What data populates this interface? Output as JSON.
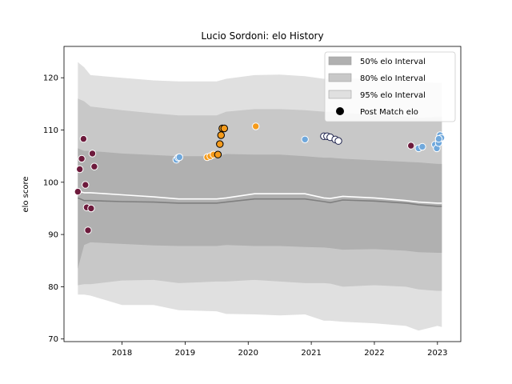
{
  "chart_data": {
    "type": "area",
    "title": "Lucio Sordoni: elo History",
    "xlabel": "",
    "ylabel": "elo score",
    "xlim": [
      2017.08,
      2023.37
    ],
    "ylim": [
      69.5,
      126.0
    ],
    "x_ticks": [
      2018,
      2019,
      2020,
      2021,
      2022,
      2023
    ],
    "x_tick_labels": [
      "2018",
      "2019",
      "2020",
      "2021",
      "2022",
      "2023"
    ],
    "y_ticks": [
      70,
      80,
      90,
      100,
      110,
      120
    ],
    "y_tick_labels": [
      "70",
      "80",
      "90",
      "100",
      "110",
      "120"
    ],
    "grid": false,
    "legend_position": "top-right",
    "legend": [
      {
        "label": "50% elo Interval",
        "kind": "patch",
        "color": "#b0b0b0"
      },
      {
        "label": "80% elo Interval",
        "kind": "patch",
        "color": "#c8c8c8"
      },
      {
        "label": "95% elo Interval",
        "kind": "patch",
        "color": "#e0e0e0"
      },
      {
        "label": "Post Match elo",
        "kind": "marker",
        "color": "#000000"
      }
    ],
    "band_x": [
      2017.3,
      2017.4,
      2017.5,
      2018.0,
      2018.5,
      2018.9,
      2019.5,
      2019.65,
      2020.1,
      2020.5,
      2020.9,
      2021.2,
      2021.3,
      2021.5,
      2022.0,
      2022.5,
      2022.7,
      2023.0,
      2023.07
    ],
    "mean": [
      97.0,
      96.5,
      96.5,
      96.3,
      96.2,
      96.0,
      96.0,
      96.2,
      96.8,
      96.8,
      96.8,
      96.3,
      96.1,
      96.6,
      96.4,
      96.0,
      95.7,
      95.4,
      95.4
    ],
    "median": [
      98.3,
      98.0,
      98.0,
      97.6,
      97.2,
      96.8,
      96.8,
      97.0,
      97.8,
      97.8,
      97.8,
      97.0,
      96.9,
      97.3,
      97.0,
      96.5,
      96.2,
      96.0,
      96.0
    ],
    "bands": [
      {
        "name": "95% elo Interval",
        "color": "#e0e0e0",
        "upper": [
          123.0,
          122.0,
          120.5,
          120.0,
          119.5,
          119.3,
          119.3,
          119.8,
          120.5,
          120.6,
          120.3,
          119.8,
          119.8,
          120.0,
          119.6,
          119.5,
          119.2,
          119.0,
          119.0
        ],
        "lower": [
          78.5,
          78.5,
          78.3,
          76.5,
          76.5,
          75.5,
          75.3,
          74.8,
          74.7,
          74.5,
          74.7,
          73.5,
          73.5,
          73.3,
          73.0,
          72.5,
          71.6,
          72.5,
          72.3
        ]
      },
      {
        "name": "80% elo Interval",
        "color": "#c8c8c8",
        "upper": [
          116.0,
          115.5,
          114.5,
          113.8,
          113.2,
          112.8,
          112.8,
          113.5,
          114.0,
          114.0,
          113.8,
          113.5,
          113.5,
          113.2,
          113.0,
          112.5,
          112.3,
          112.5,
          112.5
        ],
        "lower": [
          80.3,
          80.5,
          80.5,
          81.2,
          81.3,
          80.7,
          81.0,
          81.0,
          81.3,
          81.0,
          80.7,
          80.7,
          80.6,
          80.0,
          80.3,
          80.0,
          79.5,
          79.2,
          79.2
        ]
      },
      {
        "name": "50% elo Interval",
        "color": "#b0b0b0",
        "upper": [
          106.5,
          106.0,
          106.0,
          105.5,
          105.2,
          105.0,
          105.0,
          105.4,
          105.3,
          105.3,
          105.0,
          104.7,
          104.7,
          104.5,
          104.2,
          103.9,
          103.8,
          103.5,
          103.5
        ],
        "lower": [
          83.5,
          88.0,
          88.5,
          88.2,
          87.9,
          87.8,
          87.8,
          88.0,
          87.8,
          87.8,
          87.6,
          87.5,
          87.4,
          87.1,
          87.2,
          86.9,
          86.6,
          86.5,
          86.5
        ]
      }
    ],
    "series": [
      {
        "color": "#6d1a3c",
        "edge": "#ffffff",
        "points": [
          [
            2017.3,
            98.2
          ],
          [
            2017.33,
            102.5
          ],
          [
            2017.36,
            104.5
          ],
          [
            2017.39,
            108.3
          ],
          [
            2017.42,
            99.5
          ],
          [
            2017.44,
            95.2
          ],
          [
            2017.46,
            90.8
          ],
          [
            2017.51,
            95.0
          ],
          [
            2017.53,
            105.5
          ],
          [
            2017.56,
            103.0
          ],
          [
            2022.58,
            107.0
          ]
        ]
      },
      {
        "color": "#6fa8dc",
        "edge": "#ffffff",
        "points": [
          [
            2018.86,
            104.3
          ],
          [
            2018.89,
            104.7
          ],
          [
            2018.91,
            104.8
          ],
          [
            2020.9,
            108.2
          ],
          [
            2022.7,
            106.5
          ],
          [
            2022.76,
            106.8
          ],
          [
            2022.96,
            107.2
          ],
          [
            2022.99,
            106.5
          ],
          [
            2023.02,
            107.5
          ],
          [
            2023.04,
            109.0
          ],
          [
            2023.06,
            108.5
          ],
          [
            2023.02,
            108.3
          ]
        ]
      },
      {
        "color": "#f59b1b",
        "edge": "#ffffff",
        "points": [
          [
            2019.35,
            104.8
          ],
          [
            2019.4,
            105.0
          ],
          [
            2019.45,
            105.3
          ],
          [
            2020.12,
            110.7
          ]
        ]
      },
      {
        "color": "#f59b1b",
        "edge": "#000000",
        "points": [
          [
            2019.52,
            105.3
          ],
          [
            2019.55,
            107.3
          ],
          [
            2019.57,
            109.0
          ],
          [
            2019.59,
            110.3
          ],
          [
            2019.62,
            110.3
          ]
        ]
      },
      {
        "color": "#ffffff",
        "edge": "#1a1f4a",
        "points": [
          [
            2021.2,
            108.8
          ],
          [
            2021.25,
            108.8
          ],
          [
            2021.3,
            108.6
          ],
          [
            2021.38,
            108.2
          ],
          [
            2021.43,
            107.9
          ]
        ]
      }
    ]
  }
}
